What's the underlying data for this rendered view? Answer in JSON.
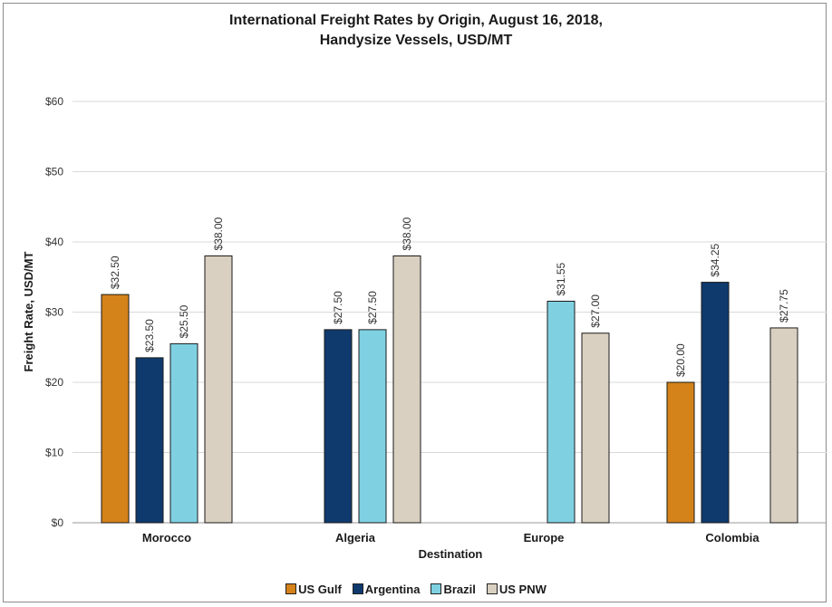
{
  "chart_data": {
    "type": "bar",
    "title_lines": [
      "International Freight Rates by Origin, August 16, 2018,",
      "Handysize Vessels, USD/MT"
    ],
    "xlabel": "Destination",
    "ylabel": "Freight Rate, USD/MT",
    "ylim": [
      0,
      60
    ],
    "yticks": [
      0,
      10,
      20,
      30,
      40,
      50,
      60
    ],
    "ytick_labels": [
      "$0",
      "$10",
      "$20",
      "$30",
      "$40",
      "$50",
      "$60"
    ],
    "grid": true,
    "legend_position": "bottom",
    "categories": [
      "Morocco",
      "Algeria",
      "Europe",
      "Colombia"
    ],
    "series": [
      {
        "name": "US Gulf",
        "color": "#d4821a",
        "values": [
          32.5,
          null,
          null,
          20.0
        ],
        "labels": [
          "$32.50",
          null,
          null,
          "$20.00"
        ]
      },
      {
        "name": "Argentina",
        "color": "#0f3a6e",
        "values": [
          23.5,
          27.5,
          null,
          34.25
        ],
        "labels": [
          "$23.50",
          "$27.50",
          null,
          "$34.25"
        ]
      },
      {
        "name": "Brazil",
        "color": "#7fd1e2",
        "values": [
          25.5,
          27.5,
          31.55,
          null
        ],
        "labels": [
          "$25.50",
          "$27.50",
          "$31.55",
          null
        ]
      },
      {
        "name": "US PNW",
        "color": "#d9d0c1",
        "values": [
          38.0,
          38.0,
          27.0,
          27.75
        ],
        "labels": [
          "$38.00",
          "$38.00",
          "$27.00",
          "$27.75"
        ]
      }
    ]
  }
}
